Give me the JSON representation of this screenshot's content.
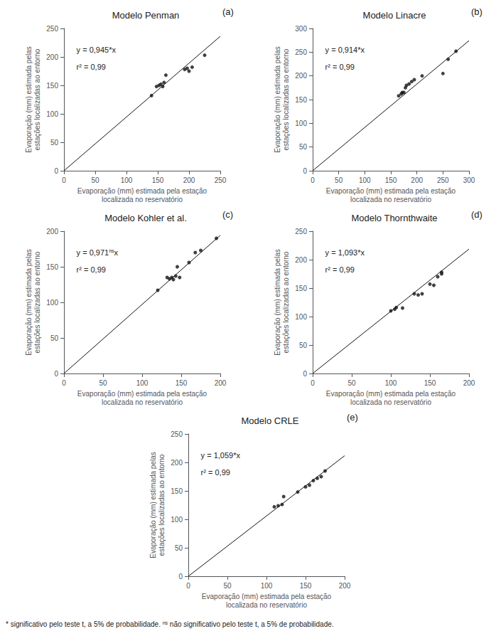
{
  "chart_data": [
    {
      "type": "scatter",
      "title": "Modelo Penman",
      "x_label": "Evaporação (mm) estimada pela estação\nlocalizada no reservatório",
      "y_label": "Evaporação (mm) estimada pelas\nestações localizadas ao entorno",
      "annotations": [
        "(a)",
        "y = 0,945*x",
        "r² = 0,99"
      ],
      "xlim": [
        0,
        250
      ],
      "ylim": [
        0,
        250
      ],
      "xticks": [
        0,
        50,
        100,
        150,
        200,
        250
      ],
      "yticks": [
        0,
        50,
        100,
        150,
        200,
        250
      ],
      "grid": false,
      "series": [
        {
          "type": "line",
          "color": "#111111",
          "x": [
            0,
            250
          ],
          "values": [
            0,
            236.25
          ]
        },
        {
          "type": "scatter",
          "color": "#111111",
          "x": [
            140,
            148,
            152,
            155,
            158,
            160,
            163,
            193,
            197,
            200,
            205,
            225
          ],
          "values": [
            132,
            148,
            150,
            152,
            148,
            155,
            168,
            178,
            180,
            175,
            182,
            203
          ]
        }
      ]
    },
    {
      "type": "scatter",
      "title": "Modelo Linacre",
      "x_label": "Evaporação (mm) estimada pela estação\nlocalizada no reservatório",
      "y_label": "Evaporação (mm) estimada pelas\nestações localizadas ao entorno",
      "annotations": [
        "(b)",
        "y = 0,914*x",
        "r² = 0,99"
      ],
      "xlim": [
        0,
        300
      ],
      "ylim": [
        0,
        300
      ],
      "xticks": [
        0,
        50,
        100,
        150,
        200,
        250,
        300
      ],
      "yticks": [
        0,
        50,
        100,
        150,
        200,
        250,
        300
      ],
      "grid": false,
      "series": [
        {
          "type": "line",
          "color": "#111111",
          "x": [
            0,
            300
          ],
          "values": [
            0,
            274.2
          ]
        },
        {
          "type": "scatter",
          "color": "#111111",
          "x": [
            165,
            170,
            172,
            175,
            178,
            180,
            185,
            190,
            195,
            210,
            250,
            260,
            275
          ],
          "values": [
            158,
            162,
            165,
            165,
            175,
            180,
            183,
            188,
            192,
            200,
            205,
            235,
            252
          ]
        }
      ]
    },
    {
      "type": "scatter",
      "title": "Modelo Kohler et al.",
      "x_label": "Evaporação (mm) estimada pela estação\nlocalizada no reservatório",
      "y_label": "Evaporação (mm) estimada pelas\nestações localizadas ao entorno",
      "annotations": [
        "(c)",
        {
          "text": "y = 0,971",
          "superscript": "ns",
          "suffix": "x"
        },
        "r² = 0,99"
      ],
      "xlim": [
        0,
        200
      ],
      "ylim": [
        0,
        200
      ],
      "xticks": [
        0,
        50,
        100,
        150,
        200
      ],
      "yticks": [
        0,
        50,
        100,
        150,
        200
      ],
      "grid": false,
      "series": [
        {
          "type": "line",
          "color": "#111111",
          "x": [
            0,
            200
          ],
          "values": [
            0,
            194.2
          ]
        },
        {
          "type": "scatter",
          "color": "#111111",
          "x": [
            120,
            132,
            135,
            138,
            140,
            143,
            145,
            148,
            160,
            168,
            175,
            195
          ],
          "values": [
            117,
            135,
            133,
            135,
            132,
            137,
            150,
            135,
            156,
            170,
            173,
            190
          ]
        }
      ]
    },
    {
      "type": "scatter",
      "title": "Modelo Thornthwaite",
      "x_label": "Evaporação (mm) estimada pela estação\nlocalizada no reservatório",
      "y_label": "Evaporação (mm) estimada pelas\nestações localizadas ao entorno",
      "annotations": [
        "(d)",
        "y = 1,093*x",
        "r² = 0,99"
      ],
      "xlim": [
        0,
        200
      ],
      "ylim": [
        0,
        250
      ],
      "xticks": [
        0,
        50,
        100,
        150,
        200
      ],
      "yticks": [
        0,
        50,
        100,
        150,
        200,
        250
      ],
      "grid": false,
      "series": [
        {
          "type": "line",
          "color": "#111111",
          "x": [
            0,
            200
          ],
          "values": [
            0,
            218.6
          ]
        },
        {
          "type": "scatter",
          "color": "#111111",
          "x": [
            100,
            105,
            107,
            115,
            130,
            135,
            140,
            150,
            155,
            160,
            165,
            165
          ],
          "values": [
            110,
            113,
            116,
            115,
            140,
            138,
            140,
            157,
            155,
            170,
            175,
            178
          ]
        }
      ]
    },
    {
      "type": "scatter",
      "title": "Modelo CRLE",
      "x_label": "Evaporação (mm) estimada pela estação\nlocalizada no reservatório",
      "y_label": "Evaporação (mm) estimada pelas\nestações localizadas ao entorno",
      "annotations": [
        "(e)",
        "y = 1,059*x",
        "r² = 0,99",
        {
          "text": "* significativo pelo teste t, a 5% de probabilidade. ",
          "superscript": "ns",
          "suffix": " não significativo pelo teste t, a 5% de probabilidade."
        }
      ],
      "xlim": [
        0,
        200
      ],
      "ylim": [
        0,
        250
      ],
      "xticks": [
        0,
        50,
        100,
        150,
        200
      ],
      "yticks": [
        0,
        50,
        100,
        150,
        200,
        250
      ],
      "grid": false,
      "series": [
        {
          "type": "line",
          "color": "#111111",
          "x": [
            0,
            200
          ],
          "values": [
            0,
            211.8
          ]
        },
        {
          "type": "scatter",
          "color": "#111111",
          "x": [
            110,
            115,
            120,
            122,
            140,
            150,
            155,
            160,
            165,
            170,
            175
          ],
          "values": [
            122,
            124,
            126,
            140,
            148,
            157,
            160,
            168,
            172,
            175,
            185
          ]
        }
      ]
    }
  ]
}
